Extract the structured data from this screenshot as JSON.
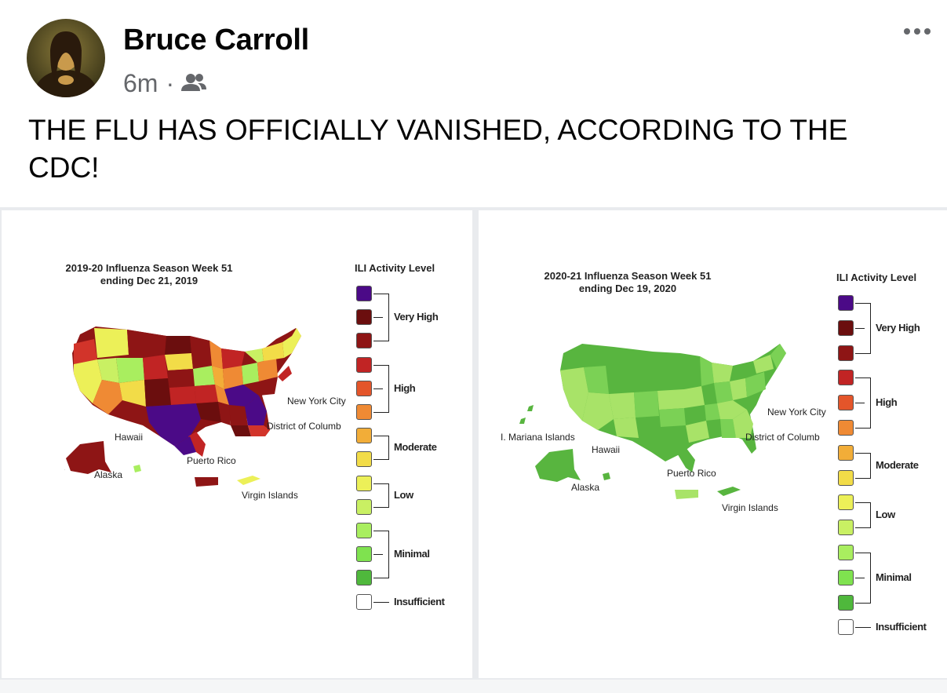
{
  "post": {
    "author": "Bruce Carroll",
    "time": "6m",
    "separator": "·",
    "audience_icon": "friends-icon",
    "more_icon": "more-icon",
    "text": "THE FLU HAS OFFICIALLY VANISHED, ACCORDING TO THE CDC!"
  },
  "images": [
    {
      "title_line1": "2019-20 Influenza Season Week 51",
      "title_line2": "ending Dec 21, 2019",
      "legend_title": "ILI Activity Level",
      "labels": {
        "hawaii": "Hawaii",
        "alaska": "Alaska",
        "puerto_rico": "Puerto Rico",
        "virgin_islands": "Virgin Islands",
        "nyc": "New York City",
        "dc": "District of Columb"
      }
    },
    {
      "title_line1": "2020-21 Influenza Season Week 51",
      "title_line2": "ending Dec 19, 2020",
      "legend_title": "ILI Activity Level",
      "labels": {
        "mariana": "I. Mariana Islands",
        "hawaii": "Hawaii",
        "alaska": "Alaska",
        "puerto_rico": "Puerto Rico",
        "virgin_islands": "Virgin Islands",
        "nyc": "New York City",
        "dc": "District of Columb"
      }
    }
  ],
  "legend": {
    "levels": [
      "Very High",
      "High",
      "Moderate",
      "Low",
      "Minimal",
      "Insufficient"
    ],
    "swatch_colors": [
      "#4b0a87",
      "#6b0e0e",
      "#8e1515",
      "#c12424",
      "#e4552a",
      "#ef8a34",
      "#f2ad38",
      "#f2dc48",
      "#ecf058",
      "#c9f063",
      "#a9ee5f",
      "#7fe24f",
      "#4fb83c",
      "#ffffff"
    ]
  },
  "colors": {
    "minimal_dark": "#58b53f",
    "minimal_mid": "#7bd155",
    "minimal_light": "#a8e368",
    "very_high": "#8e1515",
    "purple": "#4b0a87"
  }
}
